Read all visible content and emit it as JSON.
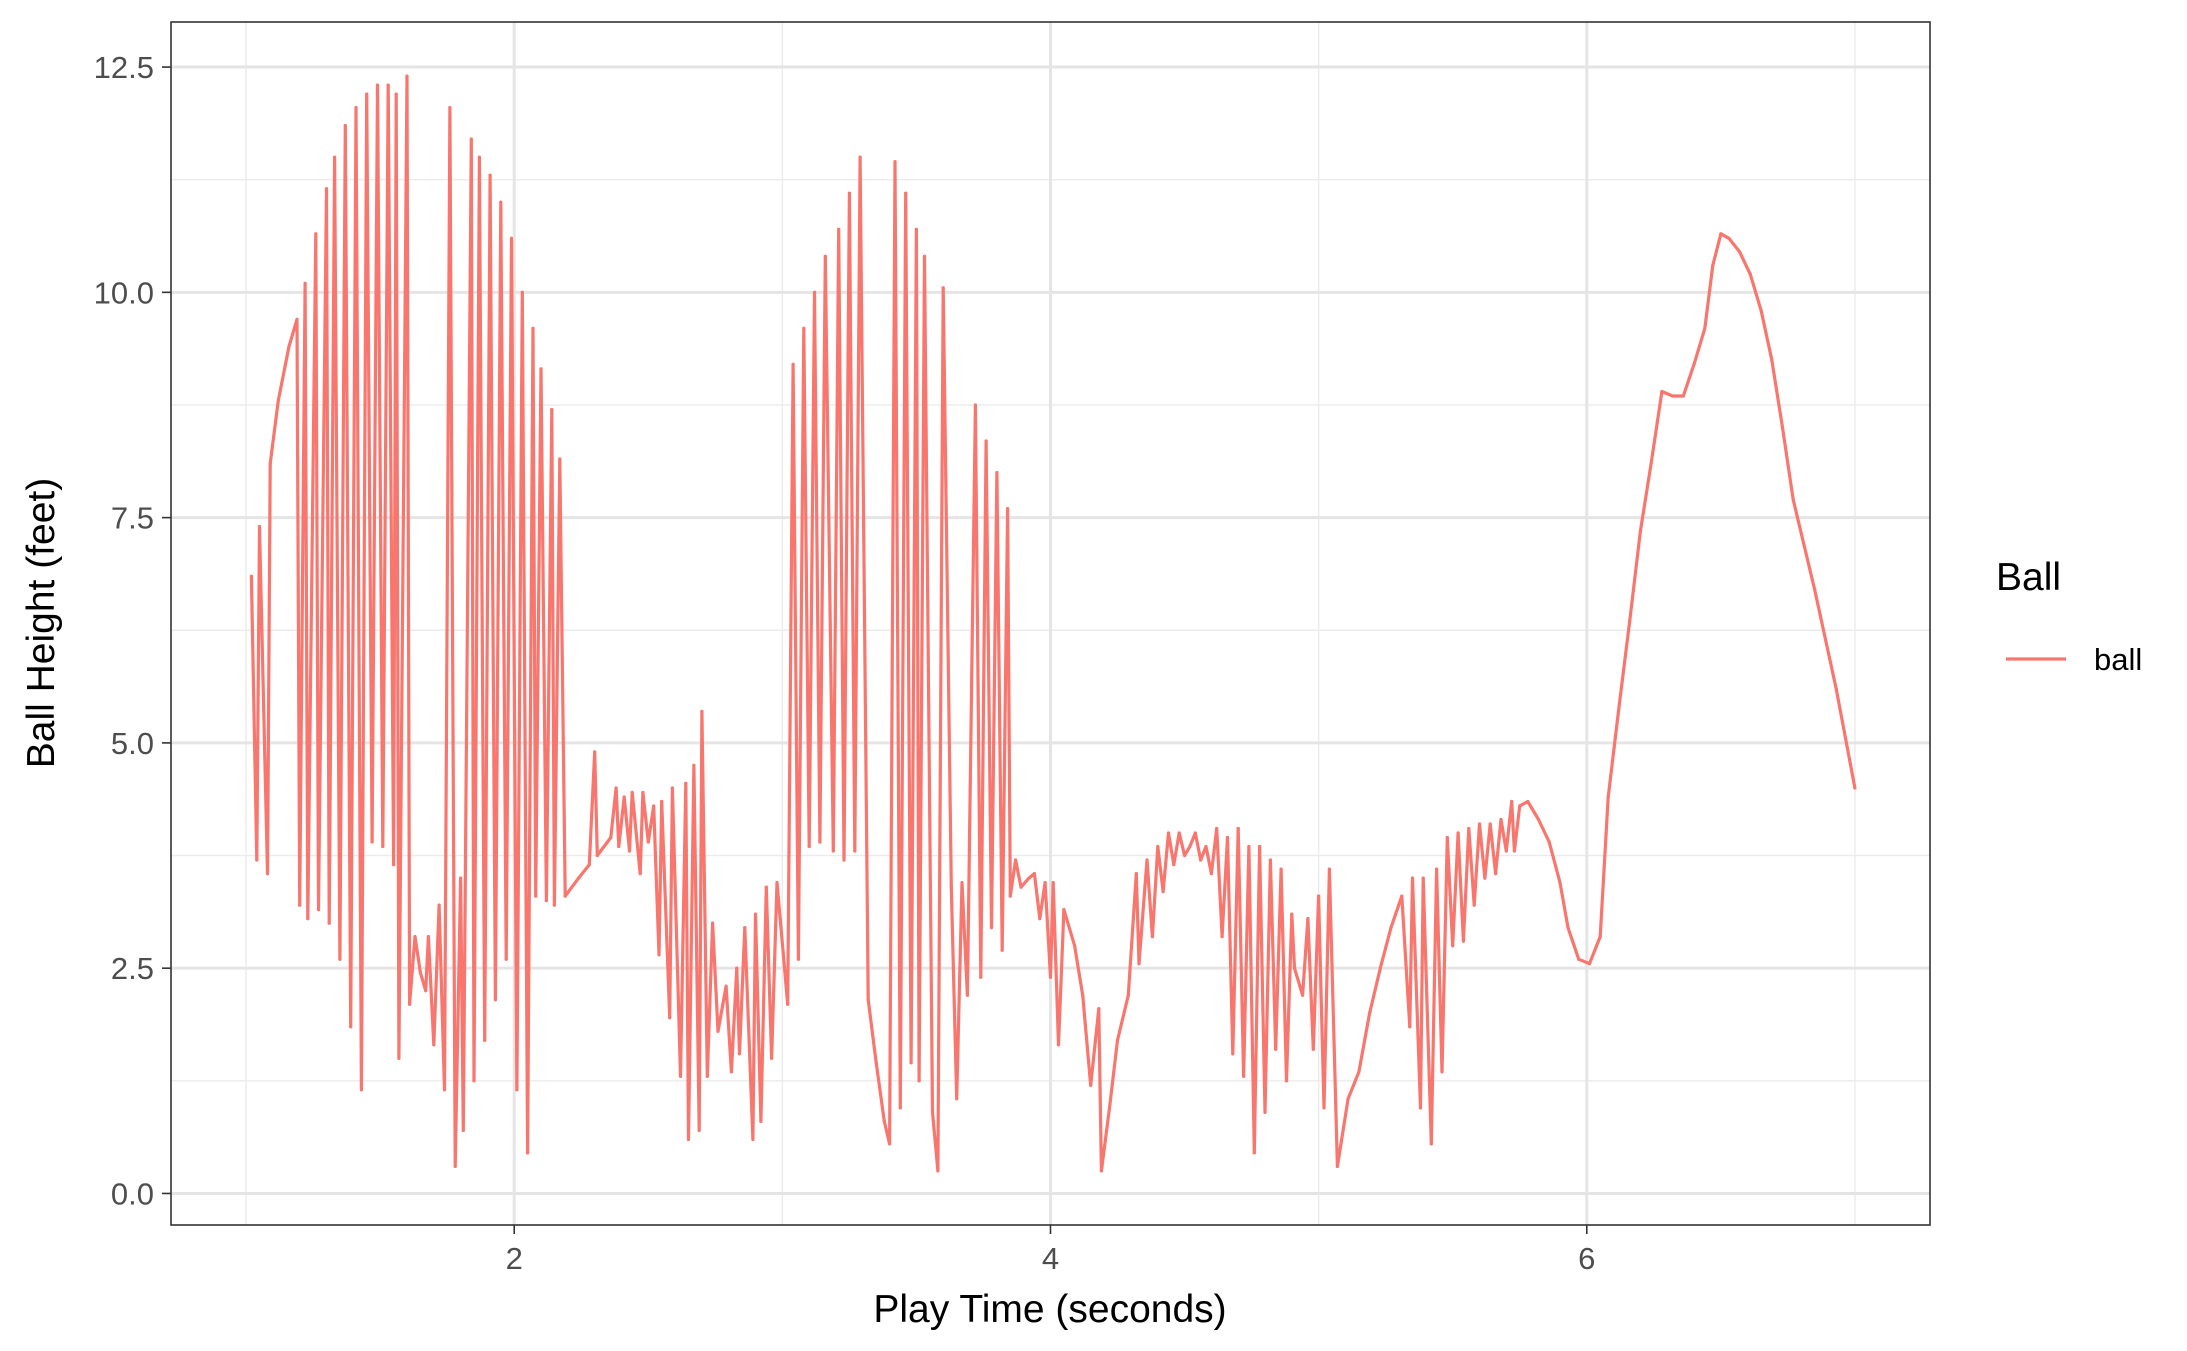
{
  "chart_data": {
    "type": "line",
    "xlabel": "Play Time (seconds)",
    "ylabel": "Ball Height (feet)",
    "xlim": [
      0.72,
      7.28
    ],
    "ylim": [
      -0.35,
      13.0
    ],
    "x_ticks": [
      {
        "value": 2,
        "label": "2"
      },
      {
        "value": 4,
        "label": "4"
      },
      {
        "value": 6,
        "label": "6"
      }
    ],
    "x_minor_ticks": [
      1,
      3,
      5,
      7
    ],
    "y_ticks": [
      {
        "value": 0.0,
        "label": "0.0"
      },
      {
        "value": 2.5,
        "label": "2.5"
      },
      {
        "value": 5.0,
        "label": "5.0"
      },
      {
        "value": 7.5,
        "label": "7.5"
      },
      {
        "value": 10.0,
        "label": "10.0"
      },
      {
        "value": 12.5,
        "label": "12.5"
      }
    ],
    "y_minor_ticks": [
      1.25,
      3.75,
      6.25,
      8.75,
      11.25
    ],
    "grid": true,
    "legend": {
      "title": "Ball",
      "position": "right",
      "entries": [
        "ball"
      ]
    },
    "series": [
      {
        "name": "ball",
        "color": "#F8766D",
        "points": [
          [
            1.02,
            6.85
          ],
          [
            1.04,
            3.7
          ],
          [
            1.05,
            7.4
          ],
          [
            1.08,
            3.55
          ],
          [
            1.09,
            8.1
          ],
          [
            1.12,
            8.8
          ],
          [
            1.16,
            9.4
          ],
          [
            1.19,
            9.7
          ],
          [
            1.2,
            3.2
          ],
          [
            1.22,
            10.1
          ],
          [
            1.23,
            3.05
          ],
          [
            1.26,
            10.65
          ],
          [
            1.27,
            3.15
          ],
          [
            1.3,
            11.15
          ],
          [
            1.31,
            3.0
          ],
          [
            1.33,
            11.5
          ],
          [
            1.35,
            2.6
          ],
          [
            1.37,
            11.85
          ],
          [
            1.39,
            1.85
          ],
          [
            1.41,
            12.05
          ],
          [
            1.43,
            1.15
          ],
          [
            1.45,
            12.2
          ],
          [
            1.47,
            3.9
          ],
          [
            1.49,
            12.3
          ],
          [
            1.51,
            3.85
          ],
          [
            1.53,
            12.3
          ],
          [
            1.55,
            3.65
          ],
          [
            1.56,
            12.2
          ],
          [
            1.57,
            1.5
          ],
          [
            1.6,
            12.4
          ],
          [
            1.61,
            2.1
          ],
          [
            1.63,
            2.85
          ],
          [
            1.65,
            2.45
          ],
          [
            1.67,
            2.25
          ],
          [
            1.68,
            2.85
          ],
          [
            1.7,
            1.65
          ],
          [
            1.72,
            3.2
          ],
          [
            1.74,
            1.15
          ],
          [
            1.76,
            12.05
          ],
          [
            1.78,
            0.3
          ],
          [
            1.8,
            3.5
          ],
          [
            1.81,
            0.7
          ],
          [
            1.84,
            11.7
          ],
          [
            1.85,
            1.25
          ],
          [
            1.87,
            11.5
          ],
          [
            1.89,
            1.7
          ],
          [
            1.91,
            11.3
          ],
          [
            1.93,
            2.15
          ],
          [
            1.95,
            11.0
          ],
          [
            1.97,
            2.6
          ],
          [
            1.99,
            10.6
          ],
          [
            2.01,
            1.15
          ],
          [
            2.03,
            10.0
          ],
          [
            2.05,
            0.45
          ],
          [
            2.07,
            9.6
          ],
          [
            2.08,
            3.3
          ],
          [
            2.1,
            9.15
          ],
          [
            2.12,
            3.25
          ],
          [
            2.14,
            8.7
          ],
          [
            2.15,
            3.2
          ],
          [
            2.17,
            8.15
          ],
          [
            2.19,
            3.3
          ],
          [
            2.24,
            3.5
          ],
          [
            2.28,
            3.65
          ],
          [
            2.3,
            4.9
          ],
          [
            2.31,
            3.75
          ],
          [
            2.36,
            3.95
          ],
          [
            2.38,
            4.5
          ],
          [
            2.39,
            3.85
          ],
          [
            2.41,
            4.4
          ],
          [
            2.43,
            3.8
          ],
          [
            2.44,
            4.45
          ],
          [
            2.47,
            3.55
          ],
          [
            2.48,
            4.45
          ],
          [
            2.5,
            3.9
          ],
          [
            2.52,
            4.3
          ],
          [
            2.54,
            2.65
          ],
          [
            2.55,
            4.35
          ],
          [
            2.58,
            1.95
          ],
          [
            2.59,
            4.5
          ],
          [
            2.62,
            1.3
          ],
          [
            2.64,
            4.55
          ],
          [
            2.65,
            0.6
          ],
          [
            2.67,
            4.75
          ],
          [
            2.69,
            0.7
          ],
          [
            2.7,
            5.35
          ],
          [
            2.72,
            1.3
          ],
          [
            2.74,
            3.0
          ],
          [
            2.76,
            1.8
          ],
          [
            2.79,
            2.3
          ],
          [
            2.81,
            1.35
          ],
          [
            2.83,
            2.5
          ],
          [
            2.84,
            1.55
          ],
          [
            2.86,
            2.95
          ],
          [
            2.89,
            0.6
          ],
          [
            2.9,
            3.1
          ],
          [
            2.92,
            0.8
          ],
          [
            2.94,
            3.4
          ],
          [
            2.96,
            1.5
          ],
          [
            2.98,
            3.45
          ],
          [
            3.02,
            2.1
          ],
          [
            3.04,
            9.2
          ],
          [
            3.06,
            2.6
          ],
          [
            3.08,
            9.6
          ],
          [
            3.1,
            3.85
          ],
          [
            3.12,
            10.0
          ],
          [
            3.14,
            3.9
          ],
          [
            3.16,
            10.4
          ],
          [
            3.19,
            3.8
          ],
          [
            3.21,
            10.7
          ],
          [
            3.23,
            3.7
          ],
          [
            3.25,
            11.1
          ],
          [
            3.27,
            3.8
          ],
          [
            3.29,
            11.5
          ],
          [
            3.32,
            2.15
          ],
          [
            3.35,
            1.45
          ],
          [
            3.38,
            0.8
          ],
          [
            3.4,
            0.55
          ],
          [
            3.42,
            11.45
          ],
          [
            3.44,
            0.95
          ],
          [
            3.46,
            11.1
          ],
          [
            3.48,
            1.45
          ],
          [
            3.5,
            10.7
          ],
          [
            3.51,
            1.25
          ],
          [
            3.53,
            10.4
          ],
          [
            3.56,
            0.9
          ],
          [
            3.58,
            0.25
          ],
          [
            3.6,
            10.05
          ],
          [
            3.63,
            3.4
          ],
          [
            3.65,
            1.05
          ],
          [
            3.67,
            3.45
          ],
          [
            3.69,
            2.2
          ],
          [
            3.72,
            8.75
          ],
          [
            3.74,
            2.4
          ],
          [
            3.76,
            8.35
          ],
          [
            3.78,
            2.95
          ],
          [
            3.8,
            8.0
          ],
          [
            3.82,
            2.7
          ],
          [
            3.84,
            7.6
          ],
          [
            3.85,
            3.3
          ],
          [
            3.87,
            3.7
          ],
          [
            3.89,
            3.4
          ],
          [
            3.92,
            3.5
          ],
          [
            3.94,
            3.55
          ],
          [
            3.96,
            3.05
          ],
          [
            3.98,
            3.45
          ],
          [
            4.0,
            2.4
          ],
          [
            4.01,
            3.45
          ],
          [
            4.03,
            1.65
          ],
          [
            4.05,
            3.15
          ],
          [
            4.09,
            2.75
          ],
          [
            4.12,
            2.2
          ],
          [
            4.15,
            1.2
          ],
          [
            4.18,
            2.05
          ],
          [
            4.19,
            0.25
          ],
          [
            4.22,
            0.95
          ],
          [
            4.25,
            1.7
          ],
          [
            4.29,
            2.2
          ],
          [
            4.32,
            3.55
          ],
          [
            4.33,
            2.55
          ],
          [
            4.36,
            3.7
          ],
          [
            4.38,
            2.85
          ],
          [
            4.4,
            3.85
          ],
          [
            4.42,
            3.35
          ],
          [
            4.44,
            4.0
          ],
          [
            4.46,
            3.65
          ],
          [
            4.48,
            4.0
          ],
          [
            4.5,
            3.75
          ],
          [
            4.52,
            3.85
          ],
          [
            4.54,
            4.0
          ],
          [
            4.56,
            3.7
          ],
          [
            4.58,
            3.85
          ],
          [
            4.6,
            3.55
          ],
          [
            4.62,
            4.05
          ],
          [
            4.64,
            2.85
          ],
          [
            4.66,
            3.95
          ],
          [
            4.68,
            1.55
          ],
          [
            4.7,
            4.05
          ],
          [
            4.72,
            1.3
          ],
          [
            4.74,
            3.85
          ],
          [
            4.76,
            0.45
          ],
          [
            4.78,
            3.85
          ],
          [
            4.8,
            0.9
          ],
          [
            4.82,
            3.7
          ],
          [
            4.84,
            1.6
          ],
          [
            4.86,
            3.6
          ],
          [
            4.88,
            1.25
          ],
          [
            4.9,
            3.1
          ],
          [
            4.91,
            2.5
          ],
          [
            4.94,
            2.2
          ],
          [
            4.96,
            3.05
          ],
          [
            4.98,
            1.6
          ],
          [
            5.0,
            3.3
          ],
          [
            5.02,
            0.95
          ],
          [
            5.04,
            3.6
          ],
          [
            5.07,
            0.3
          ],
          [
            5.11,
            1.05
          ],
          [
            5.15,
            1.35
          ],
          [
            5.19,
            2.0
          ],
          [
            5.23,
            2.5
          ],
          [
            5.27,
            2.95
          ],
          [
            5.31,
            3.3
          ],
          [
            5.34,
            1.85
          ],
          [
            5.35,
            3.5
          ],
          [
            5.38,
            0.95
          ],
          [
            5.39,
            3.5
          ],
          [
            5.42,
            0.55
          ],
          [
            5.44,
            3.6
          ],
          [
            5.46,
            1.35
          ],
          [
            5.48,
            3.95
          ],
          [
            5.5,
            2.75
          ],
          [
            5.52,
            4.0
          ],
          [
            5.54,
            2.8
          ],
          [
            5.56,
            4.05
          ],
          [
            5.58,
            3.2
          ],
          [
            5.6,
            4.1
          ],
          [
            5.62,
            3.5
          ],
          [
            5.64,
            4.1
          ],
          [
            5.66,
            3.55
          ],
          [
            5.68,
            4.15
          ],
          [
            5.7,
            3.8
          ],
          [
            5.72,
            4.35
          ],
          [
            5.73,
            3.8
          ],
          [
            5.75,
            4.3
          ],
          [
            5.78,
            4.35
          ],
          [
            5.82,
            4.15
          ],
          [
            5.86,
            3.9
          ],
          [
            5.9,
            3.45
          ],
          [
            5.93,
            2.95
          ],
          [
            5.97,
            2.6
          ],
          [
            6.01,
            2.55
          ],
          [
            6.05,
            2.85
          ],
          [
            6.08,
            4.4
          ],
          [
            6.12,
            5.4
          ],
          [
            6.16,
            6.35
          ],
          [
            6.2,
            7.35
          ],
          [
            6.24,
            8.1
          ],
          [
            6.28,
            8.9
          ],
          [
            6.32,
            8.85
          ],
          [
            6.36,
            8.85
          ],
          [
            6.4,
            9.2
          ],
          [
            6.44,
            9.6
          ],
          [
            6.47,
            10.3
          ],
          [
            6.5,
            10.65
          ],
          [
            6.53,
            10.6
          ],
          [
            6.57,
            10.45
          ],
          [
            6.61,
            10.2
          ],
          [
            6.65,
            9.8
          ],
          [
            6.69,
            9.25
          ],
          [
            6.73,
            8.5
          ],
          [
            6.77,
            7.7
          ],
          [
            6.85,
            6.7
          ],
          [
            6.93,
            5.6
          ],
          [
            7.0,
            4.5
          ]
        ]
      }
    ]
  }
}
